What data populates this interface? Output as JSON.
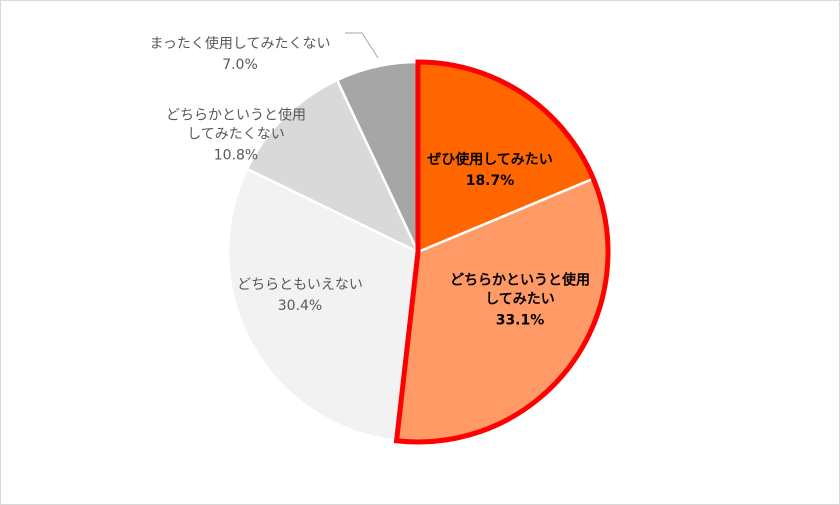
{
  "chart_data": {
    "type": "pie",
    "categories": [
      "ぜひ使用してみたい",
      "どちらかというと使用\nしてみたい",
      "どちらともいえない",
      "どちらかというと使用\nしてみたくない",
      "まったく使用してみたくない"
    ],
    "values": [
      18.7,
      33.1,
      30.4,
      10.8,
      7.0
    ],
    "value_labels": [
      "18.7%",
      "33.1%",
      "30.4%",
      "10.8%",
      "7.0%"
    ],
    "colors": [
      "#ff6600",
      "#ff9966",
      "#f2f2f2",
      "#d9d9d9",
      "#a6a6a6"
    ]
  }
}
